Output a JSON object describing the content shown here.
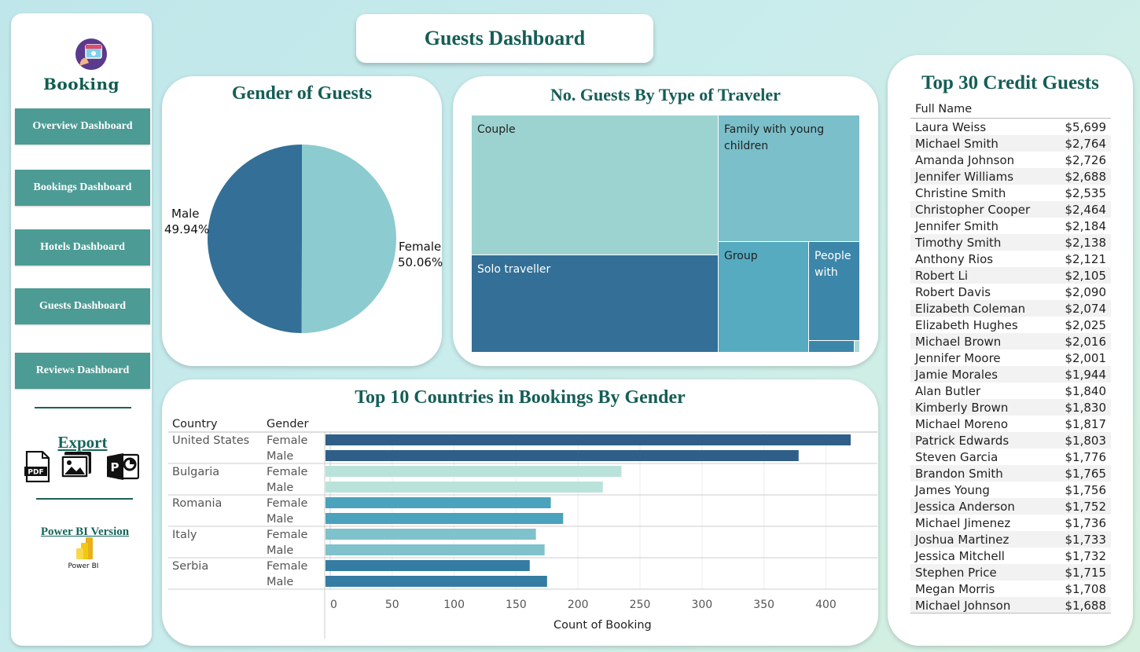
{
  "header": {
    "title": "Guests Dashboard"
  },
  "sidebar": {
    "brand": "Booking",
    "nav": [
      "Overview Dashboard",
      "Bookings Dashboard",
      "Hotels Dashboard",
      "Guests Dashboard",
      "Reviews Dashboard"
    ],
    "export_label": "Export",
    "export_icons": [
      "pdf-icon",
      "image-icon",
      "powerpoint-icon"
    ],
    "pdf_text": "PDF",
    "powerbi_label": "Power BI Version",
    "powerbi_logo_text": "Power BI"
  },
  "gender_chart": {
    "title": "Gender of Guests",
    "colors": {
      "male": "#336f96",
      "female": "#8ccbcf"
    },
    "male_label": "Male",
    "male_pct": "49.94%",
    "female_label": "Female",
    "female_pct": "50.06%"
  },
  "traveler_chart": {
    "title": "No. Guests By Type of Traveler",
    "labels": {
      "couple": "Couple",
      "family": "Family with young children",
      "solo": "Solo traveller",
      "group": "Group",
      "people": "People with"
    }
  },
  "country_chart": {
    "title": "Top 10 Countries in Bookings By Gender",
    "col_country": "Country",
    "col_gender": "Gender",
    "female": "Female",
    "male": "Male",
    "xlabel": "Count of Booking",
    "countries": [
      "United States",
      "Bulgaria",
      "Romania",
      "Italy",
      "Serbia"
    ],
    "ticks": [
      "0",
      "50",
      "100",
      "150",
      "200",
      "250",
      "300",
      "350",
      "400"
    ]
  },
  "chart_data": [
    {
      "type": "pie",
      "title": "Gender of Guests",
      "labels": [
        "Male",
        "Female"
      ],
      "values": [
        49.94,
        50.06
      ]
    },
    {
      "type": "bar",
      "title": "Top 10 Countries in Bookings By Gender",
      "orientation": "horizontal",
      "categories": [
        "United States",
        "Bulgaria",
        "Romania",
        "Italy",
        "Serbia"
      ],
      "series": [
        {
          "name": "Female",
          "values": [
            420,
            235,
            178,
            166,
            161
          ]
        },
        {
          "name": "Male",
          "values": [
            378,
            220,
            188,
            173,
            175
          ]
        }
      ],
      "colors": [
        "#2f5f88",
        "#b9e3da",
        "#4aa2bd",
        "#7fc2cb",
        "#357ca3"
      ],
      "xlabel": "Count of Booking",
      "xlim": [
        0,
        420
      ],
      "grid": true
    }
  ],
  "credit_table": {
    "title": "Top 30 Credit Guests",
    "col_name": "Full Name",
    "rows": [
      {
        "name": "Laura Weiss",
        "amount": "$5,699"
      },
      {
        "name": "Michael Smith",
        "amount": "$2,764"
      },
      {
        "name": "Amanda Johnson",
        "amount": "$2,726"
      },
      {
        "name": "Jennifer Williams",
        "amount": "$2,688"
      },
      {
        "name": "Christine Smith",
        "amount": "$2,535"
      },
      {
        "name": "Christopher Cooper",
        "amount": "$2,464"
      },
      {
        "name": "Jennifer Smith",
        "amount": "$2,184"
      },
      {
        "name": "Timothy Smith",
        "amount": "$2,138"
      },
      {
        "name": "Anthony Rios",
        "amount": "$2,121"
      },
      {
        "name": "Robert Li",
        "amount": "$2,105"
      },
      {
        "name": "Robert Davis",
        "amount": "$2,090"
      },
      {
        "name": "Elizabeth Coleman",
        "amount": "$2,074"
      },
      {
        "name": "Elizabeth Hughes",
        "amount": "$2,025"
      },
      {
        "name": "Michael Brown",
        "amount": "$2,016"
      },
      {
        "name": "Jennifer Moore",
        "amount": "$2,001"
      },
      {
        "name": "Jamie Morales",
        "amount": "$1,944"
      },
      {
        "name": "Alan Butler",
        "amount": "$1,840"
      },
      {
        "name": "Kimberly Brown",
        "amount": "$1,830"
      },
      {
        "name": "Michael Moreno",
        "amount": "$1,817"
      },
      {
        "name": "Patrick Edwards",
        "amount": "$1,803"
      },
      {
        "name": "Steven Garcia",
        "amount": "$1,776"
      },
      {
        "name": "Brandon Smith",
        "amount": "$1,765"
      },
      {
        "name": "James Young",
        "amount": "$1,756"
      },
      {
        "name": "Jessica Anderson",
        "amount": "$1,752"
      },
      {
        "name": "Michael Jimenez",
        "amount": "$1,736"
      },
      {
        "name": "Joshua Martinez",
        "amount": "$1,733"
      },
      {
        "name": "Jessica Mitchell",
        "amount": "$1,732"
      },
      {
        "name": "Stephen Price",
        "amount": "$1,715"
      },
      {
        "name": "Megan Morris",
        "amount": "$1,708"
      },
      {
        "name": "Michael Johnson",
        "amount": "$1,688"
      }
    ]
  }
}
